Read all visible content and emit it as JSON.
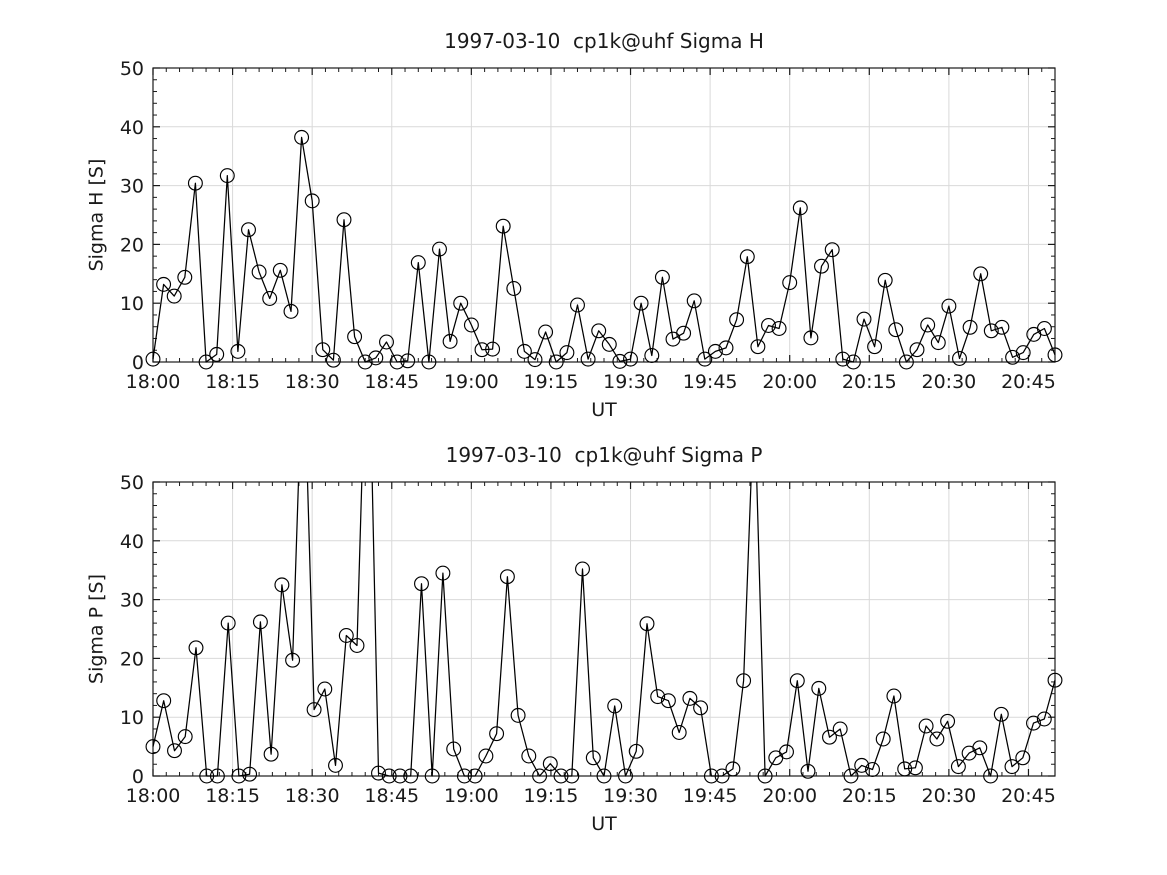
{
  "figure": {
    "background": "#ffffff"
  },
  "style": {
    "line_color": "#000000",
    "marker_color": "#000000",
    "grid_color": "#d9d9d9",
    "axis_color": "#1a1a1a",
    "text_color": "#1a1a1a"
  },
  "axes_shared": {
    "ylim": [
      0,
      50
    ],
    "yticks": [
      0,
      10,
      20,
      30,
      40,
      50
    ],
    "xtick_labels": [
      "18:00",
      "18:15",
      "18:30",
      "18:45",
      "19:00",
      "19:15",
      "19:30",
      "19:45",
      "20:00",
      "20:15",
      "20:30",
      "20:45"
    ],
    "x_total_minutes": 170,
    "xtick_interval_minutes": 15,
    "x_minor_interval_minutes": 2.5,
    "y_minor_interval": 2,
    "grid": true
  },
  "chart_data": [
    {
      "type": "line",
      "marker": "circle",
      "title": "1997-03-10  cp1k@uhf Sigma H",
      "xlabel": "UT",
      "ylabel": "Sigma H [S]",
      "x_start": "18:00",
      "x_step_minutes": 2,
      "x_end": "20:50",
      "ylim": [
        0,
        50
      ],
      "grid": true,
      "legend": "none",
      "values": [
        0.5,
        13.2,
        11.2,
        14.4,
        30.4,
        0,
        1.3,
        31.7,
        1.8,
        22.5,
        15.3,
        10.8,
        15.6,
        8.6,
        38.2,
        27.4,
        2.1,
        0.3,
        24.2,
        4.3,
        0,
        0.7,
        3.4,
        0,
        0.2,
        16.9,
        0,
        19.2,
        3.5,
        10.0,
        6.3,
        2.1,
        2.2,
        23.1,
        12.5,
        1.8,
        0.4,
        5.1,
        0,
        1.6,
        9.7,
        0.5,
        5.3,
        3.0,
        0.1,
        0.5,
        10.0,
        1.1,
        14.4,
        3.9,
        4.9,
        10.4,
        0.5,
        1.8,
        2.4,
        7.2,
        17.9,
        2.6,
        6.2,
        5.7,
        13.5,
        26.2,
        4.1,
        16.3,
        19.1,
        0.5,
        0,
        7.3,
        2.6,
        13.9,
        5.5,
        0,
        2.1,
        6.3,
        3.3,
        9.5,
        0.6,
        5.9,
        15.0,
        5.3,
        5.9,
        0.8,
        1.6,
        4.7,
        5.7,
        1.2
      ]
    },
    {
      "type": "line",
      "marker": "circle",
      "title": "1997-03-10  cp1k@uhf Sigma P",
      "xlabel": "UT",
      "ylabel": "Sigma P [S]",
      "x_start": "18:00",
      "x_step_minutes": 2,
      "x_end": "20:48",
      "ylim": [
        0,
        50
      ],
      "grid": true,
      "legend": "none",
      "clipping_note": "peaks above 50 are clipped by the axis limit; clipped values are estimates",
      "values": [
        5.0,
        12.8,
        4.3,
        6.7,
        21.8,
        0,
        0,
        26.0,
        0,
        0.3,
        26.2,
        3.7,
        32.5,
        19.7,
        75,
        11.3,
        14.8,
        1.8,
        23.9,
        22.2,
        85,
        0.5,
        0,
        0,
        0,
        32.7,
        0,
        34.5,
        4.6,
        0,
        0,
        3.4,
        7.2,
        33.9,
        10.3,
        3.4,
        0,
        2.1,
        0,
        0,
        35.2,
        3.1,
        0,
        11.9,
        0,
        4.2,
        25.9,
        13.5,
        12.8,
        7.4,
        13.2,
        11.6,
        0,
        0,
        1.2,
        16.2,
        65,
        0,
        3.1,
        4.1,
        16.2,
        0.8,
        14.9,
        6.6,
        8.0,
        0,
        1.8,
        1.1,
        6.3,
        13.6,
        1.2,
        1.4,
        8.5,
        6.3,
        9.3,
        1.6,
        3.9,
        4.8,
        0,
        10.5,
        1.6,
        3.1,
        9.0,
        9.7,
        16.3
      ]
    }
  ]
}
